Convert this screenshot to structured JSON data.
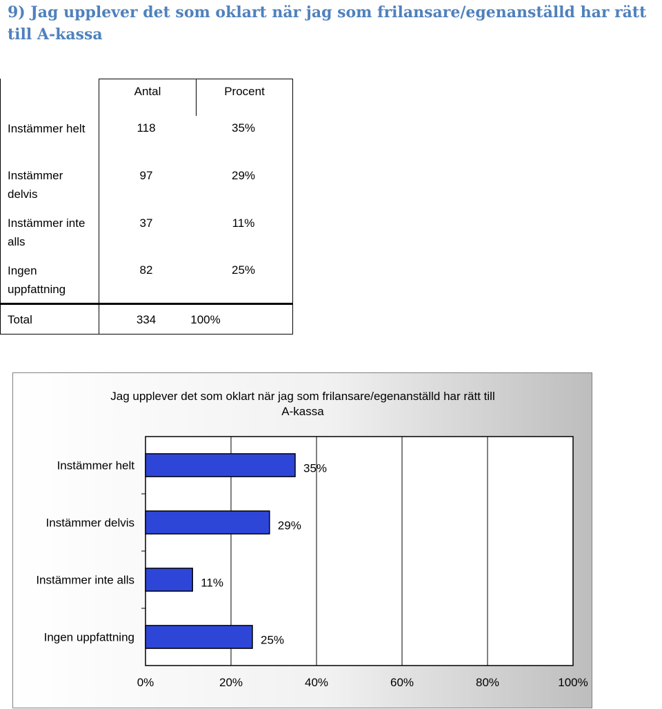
{
  "heading": "9) Jag upplever det som oklart när jag som frilansare/egenanställd har rätt till A-kassa",
  "table": {
    "headers": [
      "Antal",
      "Procent"
    ],
    "rows": [
      {
        "label": "Instämmer helt",
        "count": "118",
        "percent": "35%"
      },
      {
        "label": "Instämmer delvis",
        "count": "97",
        "percent": "29%"
      },
      {
        "label": "Instämmer inte alls",
        "count": "37",
        "percent": "11%"
      },
      {
        "label": "Ingen uppfattning",
        "count": "82",
        "percent": "25%"
      }
    ],
    "total": {
      "label": "Total",
      "count": "334",
      "percent": "100%"
    }
  },
  "chart_data": {
    "type": "bar",
    "orientation": "horizontal",
    "title": "Jag upplever det som oklart när jag som frilansare/egenanställd har rätt till A-kassa",
    "categories": [
      "Instämmer helt",
      "Instämmer delvis",
      "Instämmer inte alls",
      "Ingen uppfattning"
    ],
    "values": [
      35,
      29,
      11,
      25
    ],
    "data_labels": [
      "35%",
      "29%",
      "11%",
      "25%"
    ],
    "xlim": [
      0,
      100
    ],
    "xticks": [
      "0%",
      "20%",
      "40%",
      "60%",
      "80%",
      "100%"
    ],
    "grid": true,
    "legend": "none",
    "bar_color": "#2E46D8",
    "bar_edge_color": "#000000"
  }
}
